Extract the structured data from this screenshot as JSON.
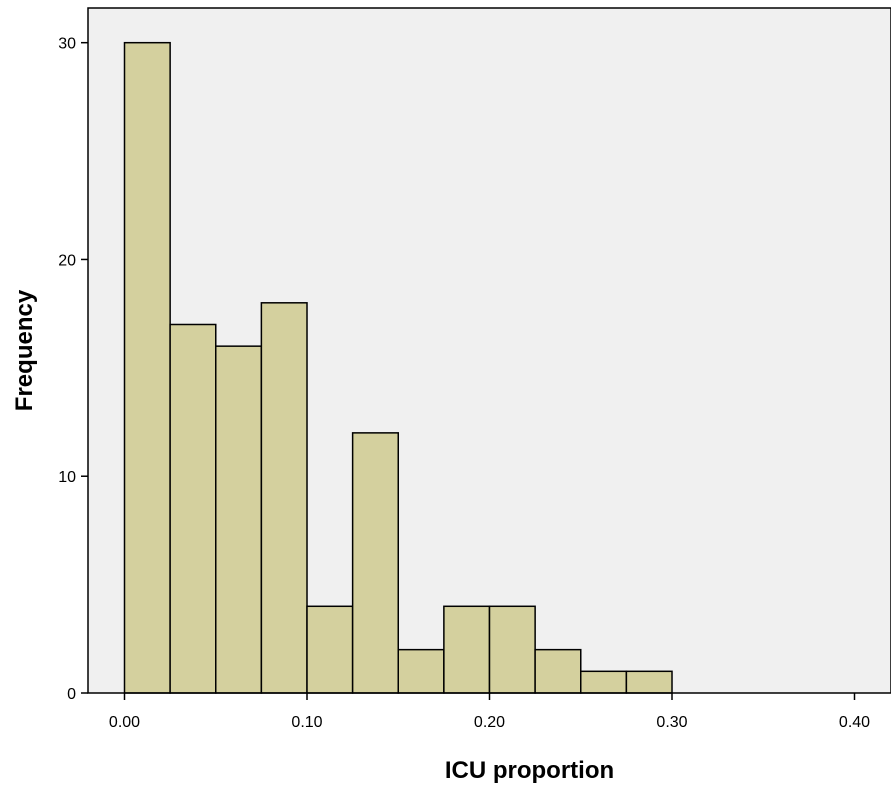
{
  "chart_data": {
    "type": "bar",
    "title": "",
    "xlabel": "ICU proportion",
    "ylabel": "Frequency",
    "bin_width": 0.025,
    "bin_starts": [
      0.0,
      0.025,
      0.05,
      0.075,
      0.1,
      0.125,
      0.15,
      0.175,
      0.2,
      0.225,
      0.25,
      0.275
    ],
    "values": [
      30,
      17,
      16,
      18,
      4,
      12,
      2,
      4,
      4,
      2,
      1,
      1
    ],
    "xlim": [
      -0.02,
      0.42
    ],
    "ylim": [
      0,
      31.6
    ],
    "x_ticks": [
      {
        "value": 0.0,
        "label": "0.00"
      },
      {
        "value": 0.1,
        "label": "0.10"
      },
      {
        "value": 0.2,
        "label": "0.20"
      },
      {
        "value": 0.3,
        "label": "0.30"
      },
      {
        "value": 0.4,
        "label": "0.40"
      }
    ],
    "y_ticks": [
      {
        "value": 0,
        "label": "0"
      },
      {
        "value": 10,
        "label": "10"
      },
      {
        "value": 20,
        "label": "20"
      },
      {
        "value": 30,
        "label": "30"
      }
    ],
    "grid": false,
    "legend": "none",
    "colors": {
      "bar_fill": "#d4d09e",
      "bar_stroke": "#000000",
      "plot_background": "#f0f0f0",
      "axis": "#000000"
    }
  }
}
